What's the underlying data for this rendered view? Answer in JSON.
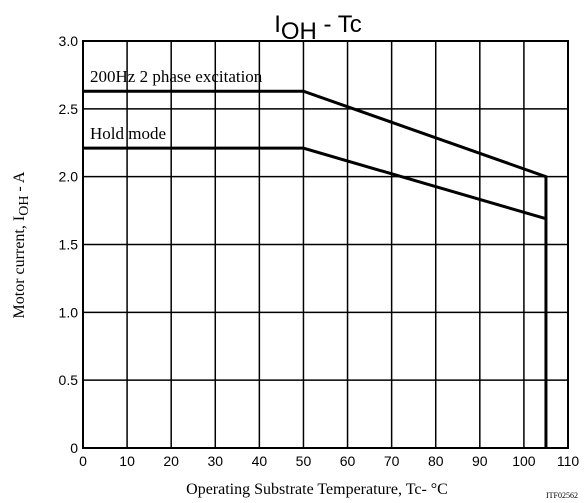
{
  "chart_data": {
    "type": "line",
    "title": {
      "main": "I",
      "sub": "OH",
      "tail": " - Tc"
    },
    "xlabel": "Operating Substrate Temperature, Tc- °C",
    "ylabel": {
      "main": "Motor current, I",
      "sub": "OH",
      "tail": " - A"
    },
    "xlim": [
      0,
      110
    ],
    "ylim": [
      0,
      3.0
    ],
    "x_ticks": [
      0,
      10,
      20,
      30,
      40,
      50,
      60,
      70,
      80,
      90,
      100,
      110
    ],
    "x_tick_labels": [
      "0",
      "10",
      "20",
      "30",
      "40",
      "50",
      "60",
      "70",
      "80",
      "90",
      "100",
      "110"
    ],
    "y_ticks": [
      0,
      0.5,
      1.0,
      1.5,
      2.0,
      2.5,
      3.0
    ],
    "y_tick_labels": [
      "0",
      "0.5",
      "1.0",
      "1.5",
      "2.0",
      "2.5",
      "3.0"
    ],
    "grid": true,
    "series": [
      {
        "name": "200Hz 2 phase excitation",
        "x": [
          0,
          50,
          105,
          105
        ],
        "y": [
          2.63,
          2.63,
          2.0,
          0
        ]
      },
      {
        "name": "Hold mode",
        "x": [
          0,
          50,
          105
        ],
        "y": [
          2.21,
          2.21,
          1.69
        ]
      }
    ],
    "figure_code": "ITF02562"
  },
  "colors": {
    "line": "#000000",
    "grid": "#000000",
    "background": "#ffffff"
  }
}
